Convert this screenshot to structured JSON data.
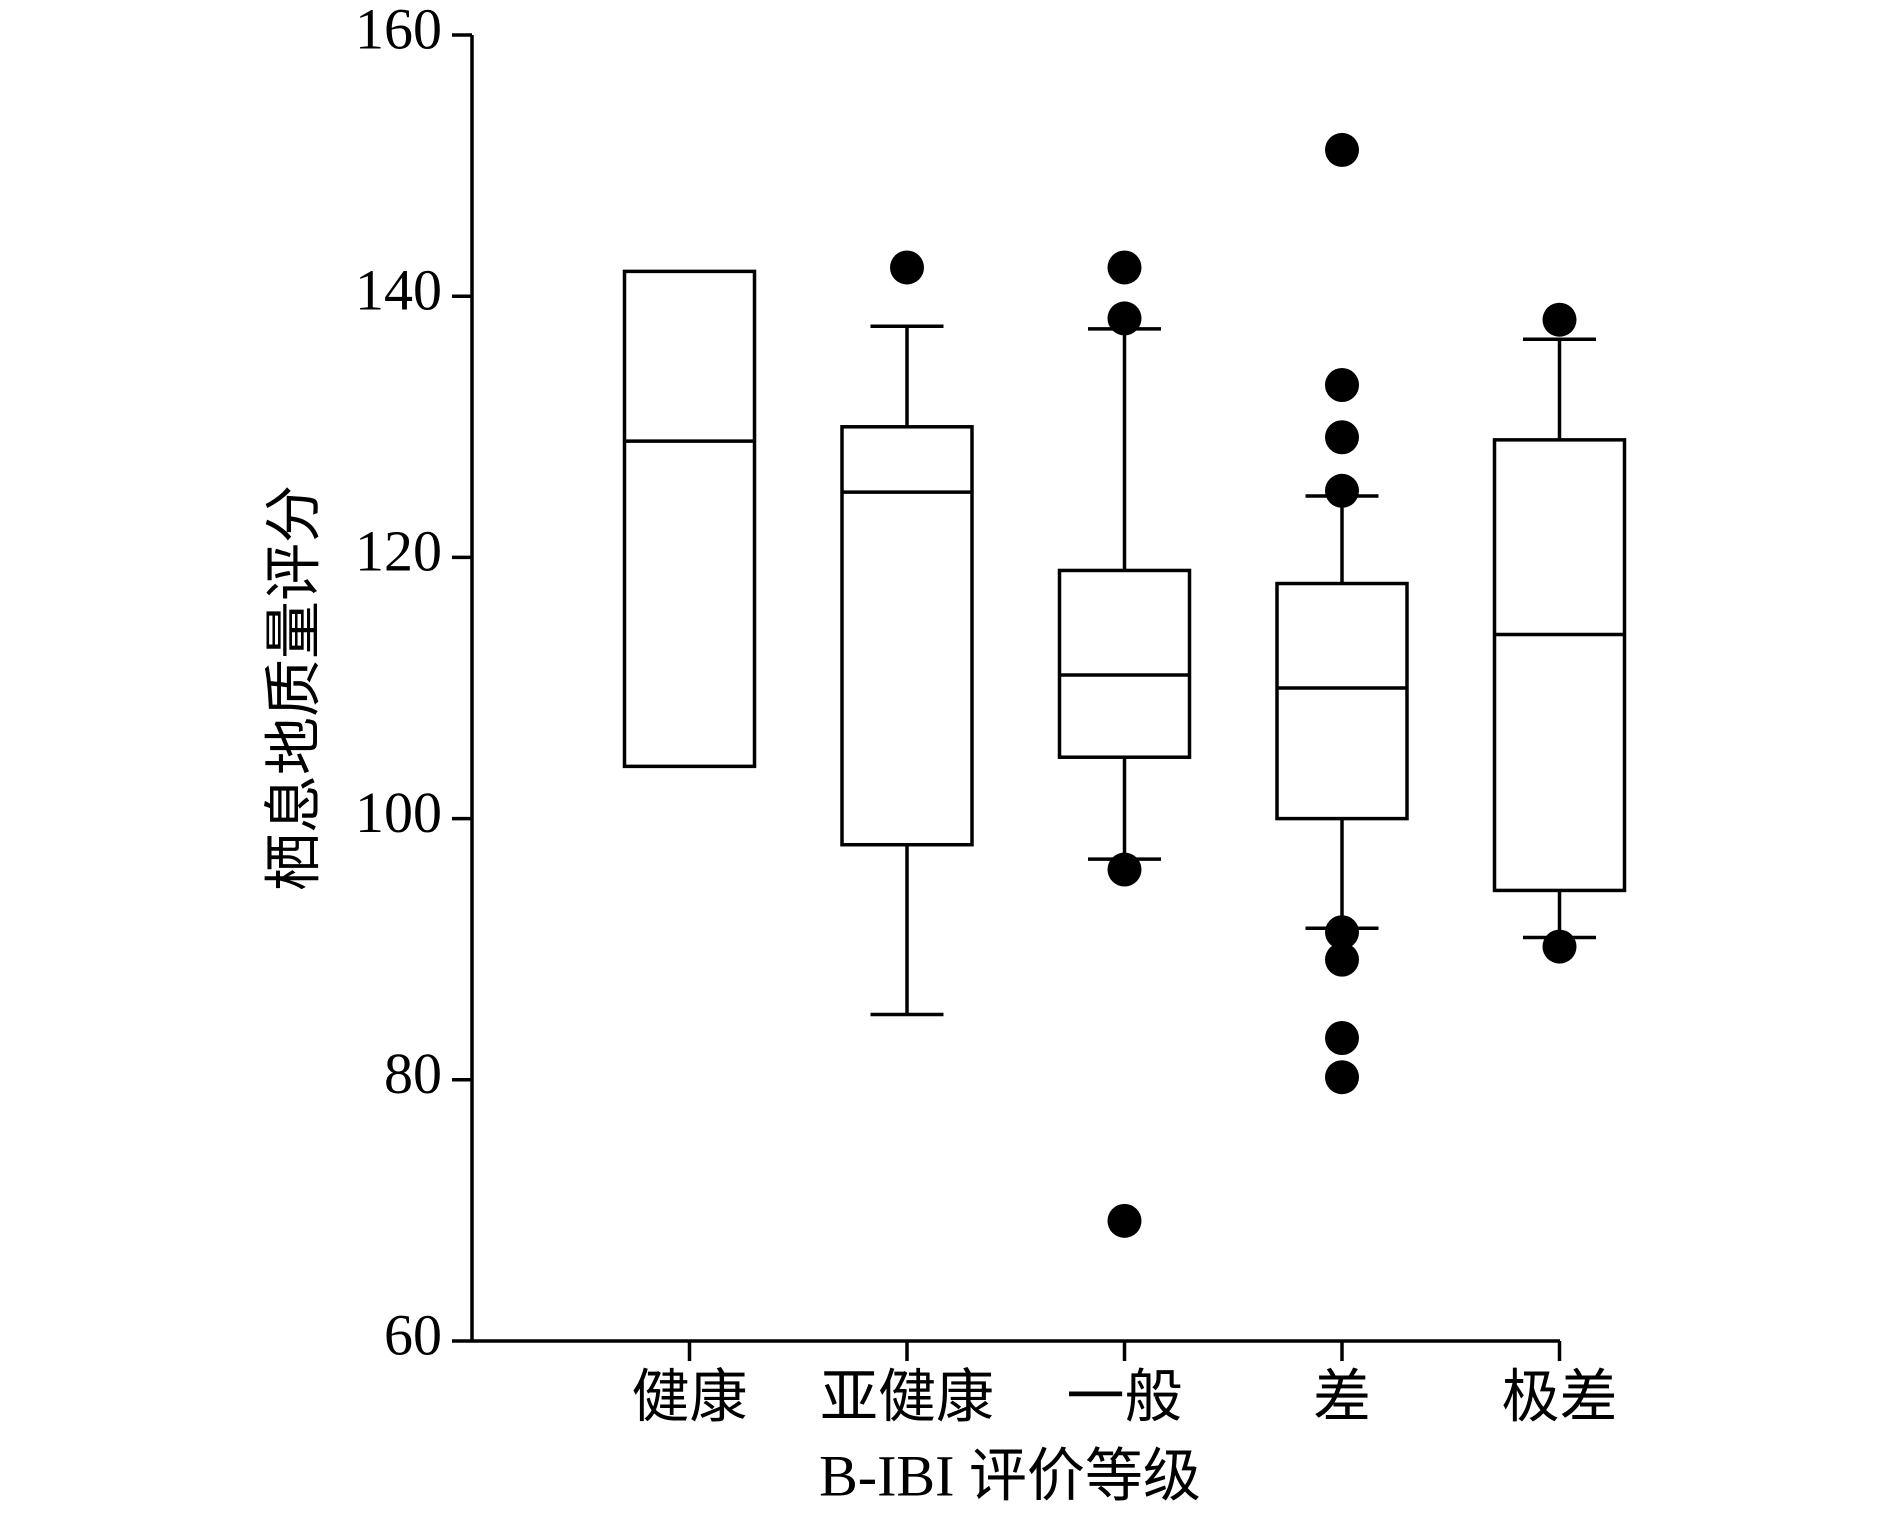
{
  "chart_data": {
    "type": "box",
    "x_label": "B-IBI 评价等级",
    "y_label": "栖息地质量评分",
    "categories": [
      "健康",
      "亚健康",
      "一般",
      "差",
      "极差"
    ],
    "whisker_low": [
      104,
      85,
      96.9,
      91.6,
      90.9
    ],
    "q1": [
      104,
      98,
      104.7,
      100,
      94.5
    ],
    "median": [
      128.9,
      125,
      111,
      110,
      114.1
    ],
    "q3": [
      141.9,
      130,
      119,
      118,
      129
    ],
    "whisker_high": [
      141.9,
      137.7,
      137.5,
      124.7,
      136.7
    ],
    "outliers": [
      [],
      [
        142.2
      ],
      [
        142.2,
        138.3,
        96.1,
        69.2
      ],
      [
        151.2,
        133.2,
        129.2,
        125.1,
        91.3,
        89.2,
        83.2,
        80.2
      ],
      [
        138.2,
        90.2
      ]
    ],
    "color": "#000000",
    "ylim": [
      60,
      160
    ],
    "yticks": [
      60,
      80,
      100,
      120,
      140,
      160
    ],
    "grid": false
  }
}
